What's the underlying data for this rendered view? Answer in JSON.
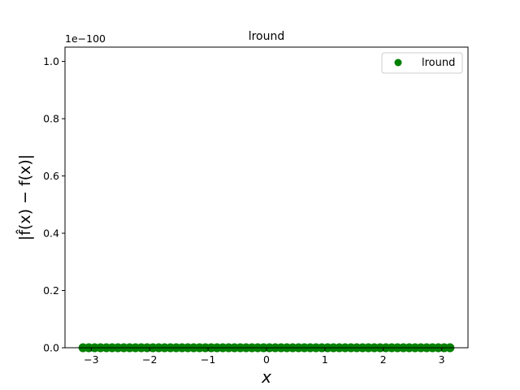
{
  "chart_data": {
    "type": "scatter",
    "title": "lround",
    "xlabel": "x",
    "ylabel": "|f̂(x) − f(x)|",
    "y_offset_label": "1e−100",
    "xlim": [
      -3.45,
      3.45
    ],
    "ylim": [
      0,
      1.05
    ],
    "xticks": [
      -3,
      -2,
      -1,
      0,
      1,
      2,
      3
    ],
    "xtick_labels": [
      "−3",
      "−2",
      "−1",
      "0",
      "1",
      "2",
      "3"
    ],
    "yticks": [
      0.0,
      0.2,
      0.4,
      0.6,
      0.8,
      1.0
    ],
    "ytick_labels": [
      "0.0",
      "0.2",
      "0.4",
      "0.6",
      "0.8",
      "1.0"
    ],
    "grid": false,
    "legend_position": "top-right",
    "series": [
      {
        "name": "lround",
        "color": "#008000",
        "x_range": [
          -3.14159,
          3.14159
        ],
        "n_points": 64,
        "y_constant": 0
      }
    ]
  }
}
